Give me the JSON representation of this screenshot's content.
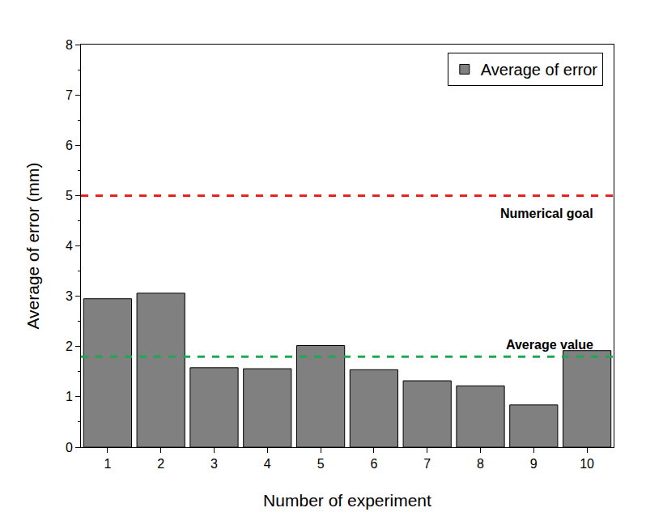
{
  "chart_data": {
    "type": "bar",
    "x_label": "Number of experiment",
    "y_label": "Average of error (mm)",
    "categories": [
      "1",
      "2",
      "3",
      "4",
      "5",
      "6",
      "7",
      "8",
      "9",
      "10"
    ],
    "series": [
      {
        "name": "Average of error",
        "color": "#808080",
        "values": [
          2.95,
          3.06,
          1.58,
          1.56,
          2.02,
          1.54,
          1.32,
          1.22,
          0.84,
          1.92
        ]
      }
    ],
    "ylim": [
      0,
      8
    ],
    "yticks": [
      0,
      1,
      2,
      3,
      4,
      5,
      6,
      7,
      8
    ],
    "grid": false,
    "legend": "upper right",
    "annotations": [
      {
        "text": "Numerical goal",
        "y": 5,
        "color": "#e8231f",
        "line_style": "dash"
      },
      {
        "text": "Average value",
        "y": 1.8,
        "color": "#1fa84f",
        "line_style": "dash"
      }
    ]
  }
}
